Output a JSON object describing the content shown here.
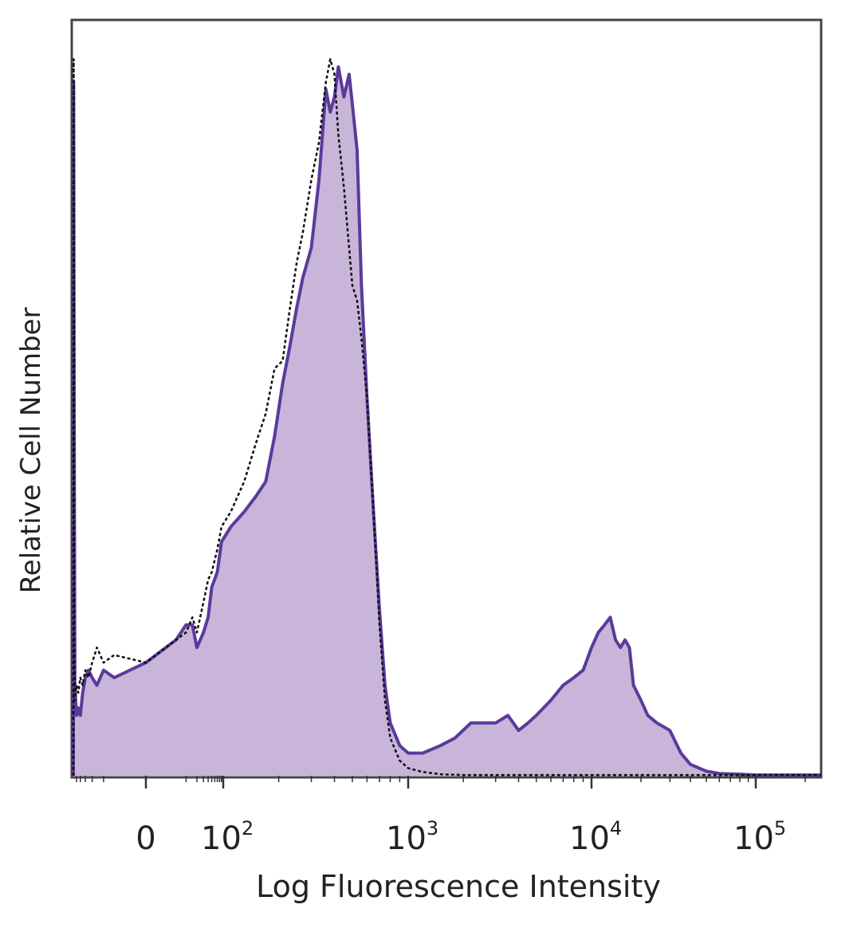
{
  "chart_data": {
    "type": "area",
    "title": "",
    "xlabel": "Log Fluorescence Intensity",
    "ylabel": "Relative Cell Number",
    "x_scale": "biexponential",
    "xlim": [
      -60,
      250000
    ],
    "ylim": [
      0,
      100
    ],
    "grid": false,
    "legend": "none",
    "x_ticks": [
      {
        "value": 0,
        "base": "0",
        "exp": ""
      },
      {
        "value": 100,
        "base": "10",
        "exp": "2"
      },
      {
        "value": 1000,
        "base": "10",
        "exp": "3"
      },
      {
        "value": 10000,
        "base": "10",
        "exp": "4"
      },
      {
        "value": 100000,
        "base": "10",
        "exp": "5"
      }
    ],
    "colors": {
      "sample_line": "#5b3a9c",
      "sample_fill": "#c9b5d9",
      "control_line": "#111111",
      "axis": "#333333"
    },
    "series": [
      {
        "style": "filled",
        "x": [
          -60,
          -59,
          -57,
          -55,
          -50,
          -45,
          -40,
          -35,
          -30,
          -25,
          -20,
          -15,
          -10,
          -5,
          0,
          5,
          10,
          15,
          20,
          30,
          40,
          50,
          70,
          90,
          110,
          130,
          150,
          170,
          190,
          210,
          230,
          250,
          270,
          300,
          330,
          360,
          380,
          400,
          420,
          450,
          480,
          500,
          530,
          560,
          600,
          650,
          700,
          750,
          800,
          900,
          1000,
          1200,
          1500,
          1800,
          2200,
          2600,
          3000,
          3500,
          4000,
          4500,
          5000,
          6000,
          7000,
          8000,
          9000,
          10000,
          11000,
          12000,
          13000,
          14000,
          15000,
          16000,
          17000,
          18000,
          20000,
          22000,
          25000,
          30000,
          35000,
          40000,
          50000,
          60000,
          80000,
          100000,
          150000,
          250000
        ],
        "y": [
          0,
          92,
          45,
          12,
          8,
          9,
          8,
          11,
          13,
          14,
          13,
          12,
          14,
          13,
          15,
          18,
          20,
          20,
          17,
          19,
          21,
          25,
          27,
          31,
          33,
          35,
          37,
          39,
          45,
          52,
          57,
          62,
          66,
          70,
          79,
          91,
          88,
          90,
          94,
          90,
          93,
          89,
          83,
          65,
          50,
          35,
          22,
          12,
          7,
          4,
          3,
          3,
          4,
          5,
          7,
          7,
          7,
          8,
          6,
          7,
          8,
          10,
          12,
          13,
          14,
          17,
          19,
          20,
          21,
          18,
          17,
          18,
          17,
          12,
          10,
          8,
          7,
          6,
          3,
          1.5,
          0.6,
          0.3,
          0.2,
          0.1,
          0.1,
          0.1
        ]
      },
      {
        "style": "dotted",
        "x": [
          -60,
          -59,
          -57,
          -55,
          -50,
          -45,
          -40,
          -35,
          -30,
          -25,
          -20,
          -15,
          -10,
          -5,
          0,
          5,
          10,
          15,
          20,
          30,
          40,
          50,
          70,
          90,
          110,
          130,
          150,
          170,
          190,
          210,
          230,
          250,
          270,
          300,
          330,
          360,
          380,
          400,
          420,
          450,
          480,
          500,
          530,
          560,
          600,
          650,
          700,
          750,
          800,
          900,
          1000,
          1200,
          1500,
          2000,
          5000,
          20000,
          100000,
          250000
        ],
        "y": [
          0,
          95,
          20,
          10,
          12,
          11,
          13,
          12,
          14,
          13,
          15,
          17,
          15,
          16,
          15,
          18,
          19,
          21,
          19,
          23,
          26,
          27,
          30,
          33,
          35,
          39,
          44,
          48,
          54,
          55,
          62,
          68,
          72,
          79,
          84,
          92,
          95,
          93,
          85,
          78,
          70,
          65,
          63,
          58,
          50,
          35,
          20,
          10,
          5,
          2,
          1,
          0.5,
          0.2,
          0.1,
          0.1,
          0.1,
          0.1,
          0.1
        ]
      }
    ]
  }
}
